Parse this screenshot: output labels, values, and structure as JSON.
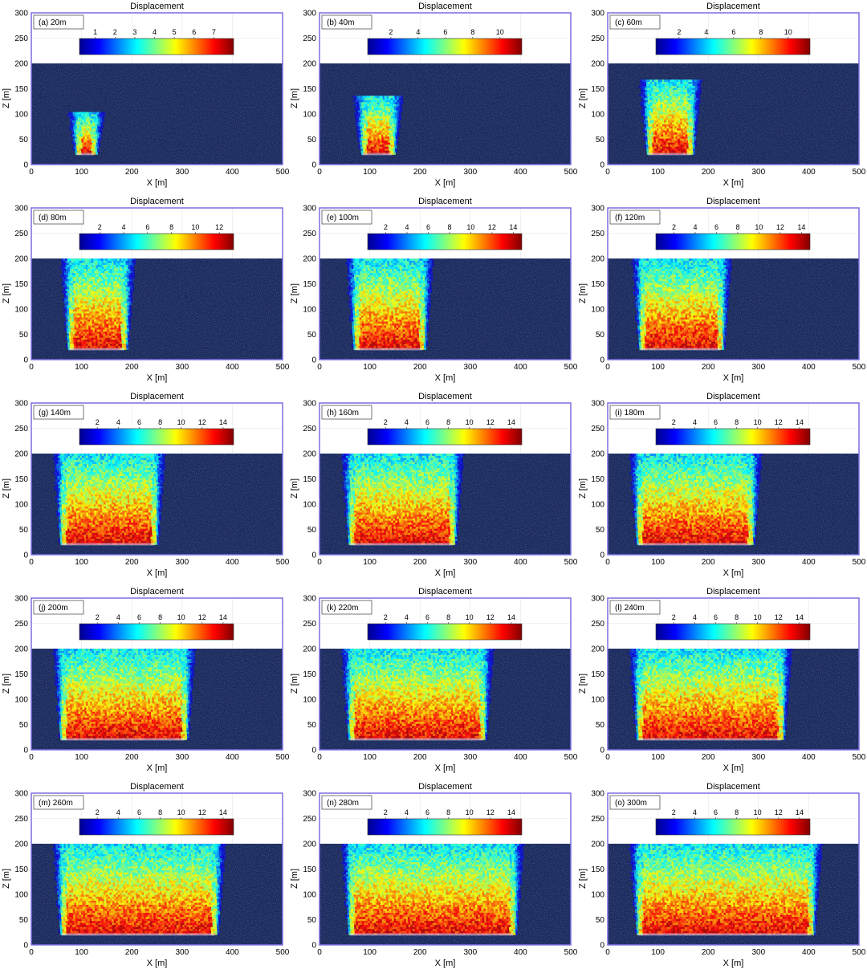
{
  "figure": {
    "panel_title": "Displacement",
    "x_label": "X [m]",
    "y_label": "Z [m]",
    "x_ticks": [
      0,
      100,
      200,
      300,
      400,
      500
    ],
    "y_ticks": [
      0,
      50,
      100,
      150,
      200,
      250,
      300
    ],
    "x_range": [
      0,
      500
    ],
    "y_range": [
      0,
      300
    ],
    "colormap": [
      "#00008f",
      "#0000ff",
      "#0080ff",
      "#00ffff",
      "#80ff80",
      "#ffff00",
      "#ff8000",
      "#ff0000",
      "#800000"
    ],
    "background_color": "#1a2a5e",
    "axes_border_color": "#7b6fe0"
  },
  "chart_data": [
    {
      "type": "heatmap",
      "label": "(a) 20m",
      "advance_m": 20,
      "colorbar_ticks": [
        1,
        2,
        3,
        4,
        5,
        6,
        7
      ],
      "colorbar_range": [
        0.2,
        8.0
      ],
      "seam_z": 20,
      "disturbed_x": [
        90,
        125
      ],
      "surface_z": 200,
      "xlabel": "X [m]",
      "ylabel": "Z [m]",
      "title": "Displacement"
    },
    {
      "type": "heatmap",
      "label": "(b) 40m",
      "advance_m": 40,
      "colorbar_ticks": [
        2,
        4,
        6,
        8,
        10
      ],
      "colorbar_range": [
        0.3,
        11.6
      ],
      "seam_z": 20,
      "disturbed_x": [
        85,
        145
      ],
      "surface_z": 200,
      "xlabel": "X [m]",
      "ylabel": "Z [m]",
      "title": "Displacement"
    },
    {
      "type": "heatmap",
      "label": "(c) 60m",
      "advance_m": 60,
      "colorbar_ticks": [
        2,
        4,
        6,
        8,
        10
      ],
      "colorbar_range": [
        0.3,
        11.6
      ],
      "seam_z": 20,
      "disturbed_x": [
        80,
        165
      ],
      "surface_z": 200,
      "xlabel": "X [m]",
      "ylabel": "Z [m]",
      "title": "Displacement"
    },
    {
      "type": "heatmap",
      "label": "(d) 80m",
      "advance_m": 80,
      "colorbar_ticks": [
        2,
        4,
        6,
        8,
        10,
        12
      ],
      "colorbar_range": [
        0.3,
        13.2
      ],
      "seam_z": 20,
      "disturbed_x": [
        75,
        185
      ],
      "surface_z": 200,
      "xlabel": "X [m]",
      "ylabel": "Z [m]",
      "title": "Displacement"
    },
    {
      "type": "heatmap",
      "label": "(e) 100m",
      "advance_m": 100,
      "colorbar_ticks": [
        2,
        4,
        6,
        8,
        10,
        12,
        14
      ],
      "colorbar_range": [
        0.3,
        14.8
      ],
      "seam_z": 20,
      "disturbed_x": [
        70,
        205
      ],
      "surface_z": 200,
      "xlabel": "X [m]",
      "ylabel": "Z [m]",
      "title": "Displacement"
    },
    {
      "type": "heatmap",
      "label": "(f) 120m",
      "advance_m": 120,
      "colorbar_ticks": [
        2,
        4,
        6,
        8,
        10,
        12,
        14
      ],
      "colorbar_range": [
        0.3,
        14.8
      ],
      "seam_z": 20,
      "disturbed_x": [
        65,
        225
      ],
      "surface_z": 200,
      "xlabel": "X [m]",
      "ylabel": "Z [m]",
      "title": "Displacement"
    },
    {
      "type": "heatmap",
      "label": "(g) 140m",
      "advance_m": 140,
      "colorbar_ticks": [
        2,
        4,
        6,
        8,
        10,
        12,
        14
      ],
      "colorbar_range": [
        0.3,
        15.0
      ],
      "seam_z": 20,
      "disturbed_x": [
        60,
        245
      ],
      "surface_z": 200,
      "xlabel": "X [m]",
      "ylabel": "Z [m]",
      "title": "Displacement"
    },
    {
      "type": "heatmap",
      "label": "(h) 160m",
      "advance_m": 160,
      "colorbar_ticks": [
        2,
        4,
        6,
        8,
        10,
        12,
        14
      ],
      "colorbar_range": [
        0.3,
        15.0
      ],
      "seam_z": 20,
      "disturbed_x": [
        60,
        265
      ],
      "surface_z": 200,
      "xlabel": "X [m]",
      "ylabel": "Z [m]",
      "title": "Displacement"
    },
    {
      "type": "heatmap",
      "label": "(i) 180m",
      "advance_m": 180,
      "colorbar_ticks": [
        2,
        4,
        6,
        8,
        10,
        12,
        14
      ],
      "colorbar_range": [
        0.3,
        15.0
      ],
      "seam_z": 20,
      "disturbed_x": [
        60,
        285
      ],
      "surface_z": 200,
      "xlabel": "X [m]",
      "ylabel": "Z [m]",
      "title": "Displacement"
    },
    {
      "type": "heatmap",
      "label": "(j) 200m",
      "advance_m": 200,
      "colorbar_ticks": [
        2,
        4,
        6,
        8,
        10,
        12,
        14
      ],
      "colorbar_range": [
        0.3,
        15.0
      ],
      "seam_z": 20,
      "disturbed_x": [
        60,
        305
      ],
      "surface_z": 200,
      "xlabel": "X [m]",
      "ylabel": "Z [m]",
      "title": "Displacement"
    },
    {
      "type": "heatmap",
      "label": "(k) 220m",
      "advance_m": 220,
      "colorbar_ticks": [
        2,
        4,
        6,
        8,
        10,
        12,
        14
      ],
      "colorbar_range": [
        0.3,
        15.0
      ],
      "seam_z": 20,
      "disturbed_x": [
        60,
        325
      ],
      "surface_z": 200,
      "xlabel": "X [m]",
      "ylabel": "Z [m]",
      "title": "Displacement"
    },
    {
      "type": "heatmap",
      "label": "(l) 240m",
      "advance_m": 240,
      "colorbar_ticks": [
        2,
        4,
        6,
        8,
        10,
        12,
        14
      ],
      "colorbar_range": [
        0.3,
        15.0
      ],
      "seam_z": 20,
      "disturbed_x": [
        60,
        345
      ],
      "surface_z": 200,
      "xlabel": "X [m]",
      "ylabel": "Z [m]",
      "title": "Displacement"
    },
    {
      "type": "heatmap",
      "label": "(m) 260m",
      "advance_m": 260,
      "colorbar_ticks": [
        2,
        4,
        6,
        8,
        10,
        12,
        14
      ],
      "colorbar_range": [
        0.3,
        15.0
      ],
      "seam_z": 20,
      "disturbed_x": [
        60,
        365
      ],
      "surface_z": 200,
      "xlabel": "X [m]",
      "ylabel": "Z [m]",
      "title": "Displacement"
    },
    {
      "type": "heatmap",
      "label": "(n) 280m",
      "advance_m": 280,
      "colorbar_ticks": [
        2,
        4,
        6,
        8,
        10,
        12,
        14
      ],
      "colorbar_range": [
        0.3,
        15.0
      ],
      "seam_z": 20,
      "disturbed_x": [
        60,
        385
      ],
      "surface_z": 200,
      "xlabel": "X [m]",
      "ylabel": "Z [m]",
      "title": "Displacement"
    },
    {
      "type": "heatmap",
      "label": "(o) 300m",
      "advance_m": 300,
      "colorbar_ticks": [
        2,
        4,
        6,
        8,
        10,
        12,
        14
      ],
      "colorbar_range": [
        0.3,
        15.0
      ],
      "seam_z": 20,
      "disturbed_x": [
        60,
        405
      ],
      "surface_z": 200,
      "xlabel": "X [m]",
      "ylabel": "Z [m]",
      "title": "Displacement"
    }
  ]
}
